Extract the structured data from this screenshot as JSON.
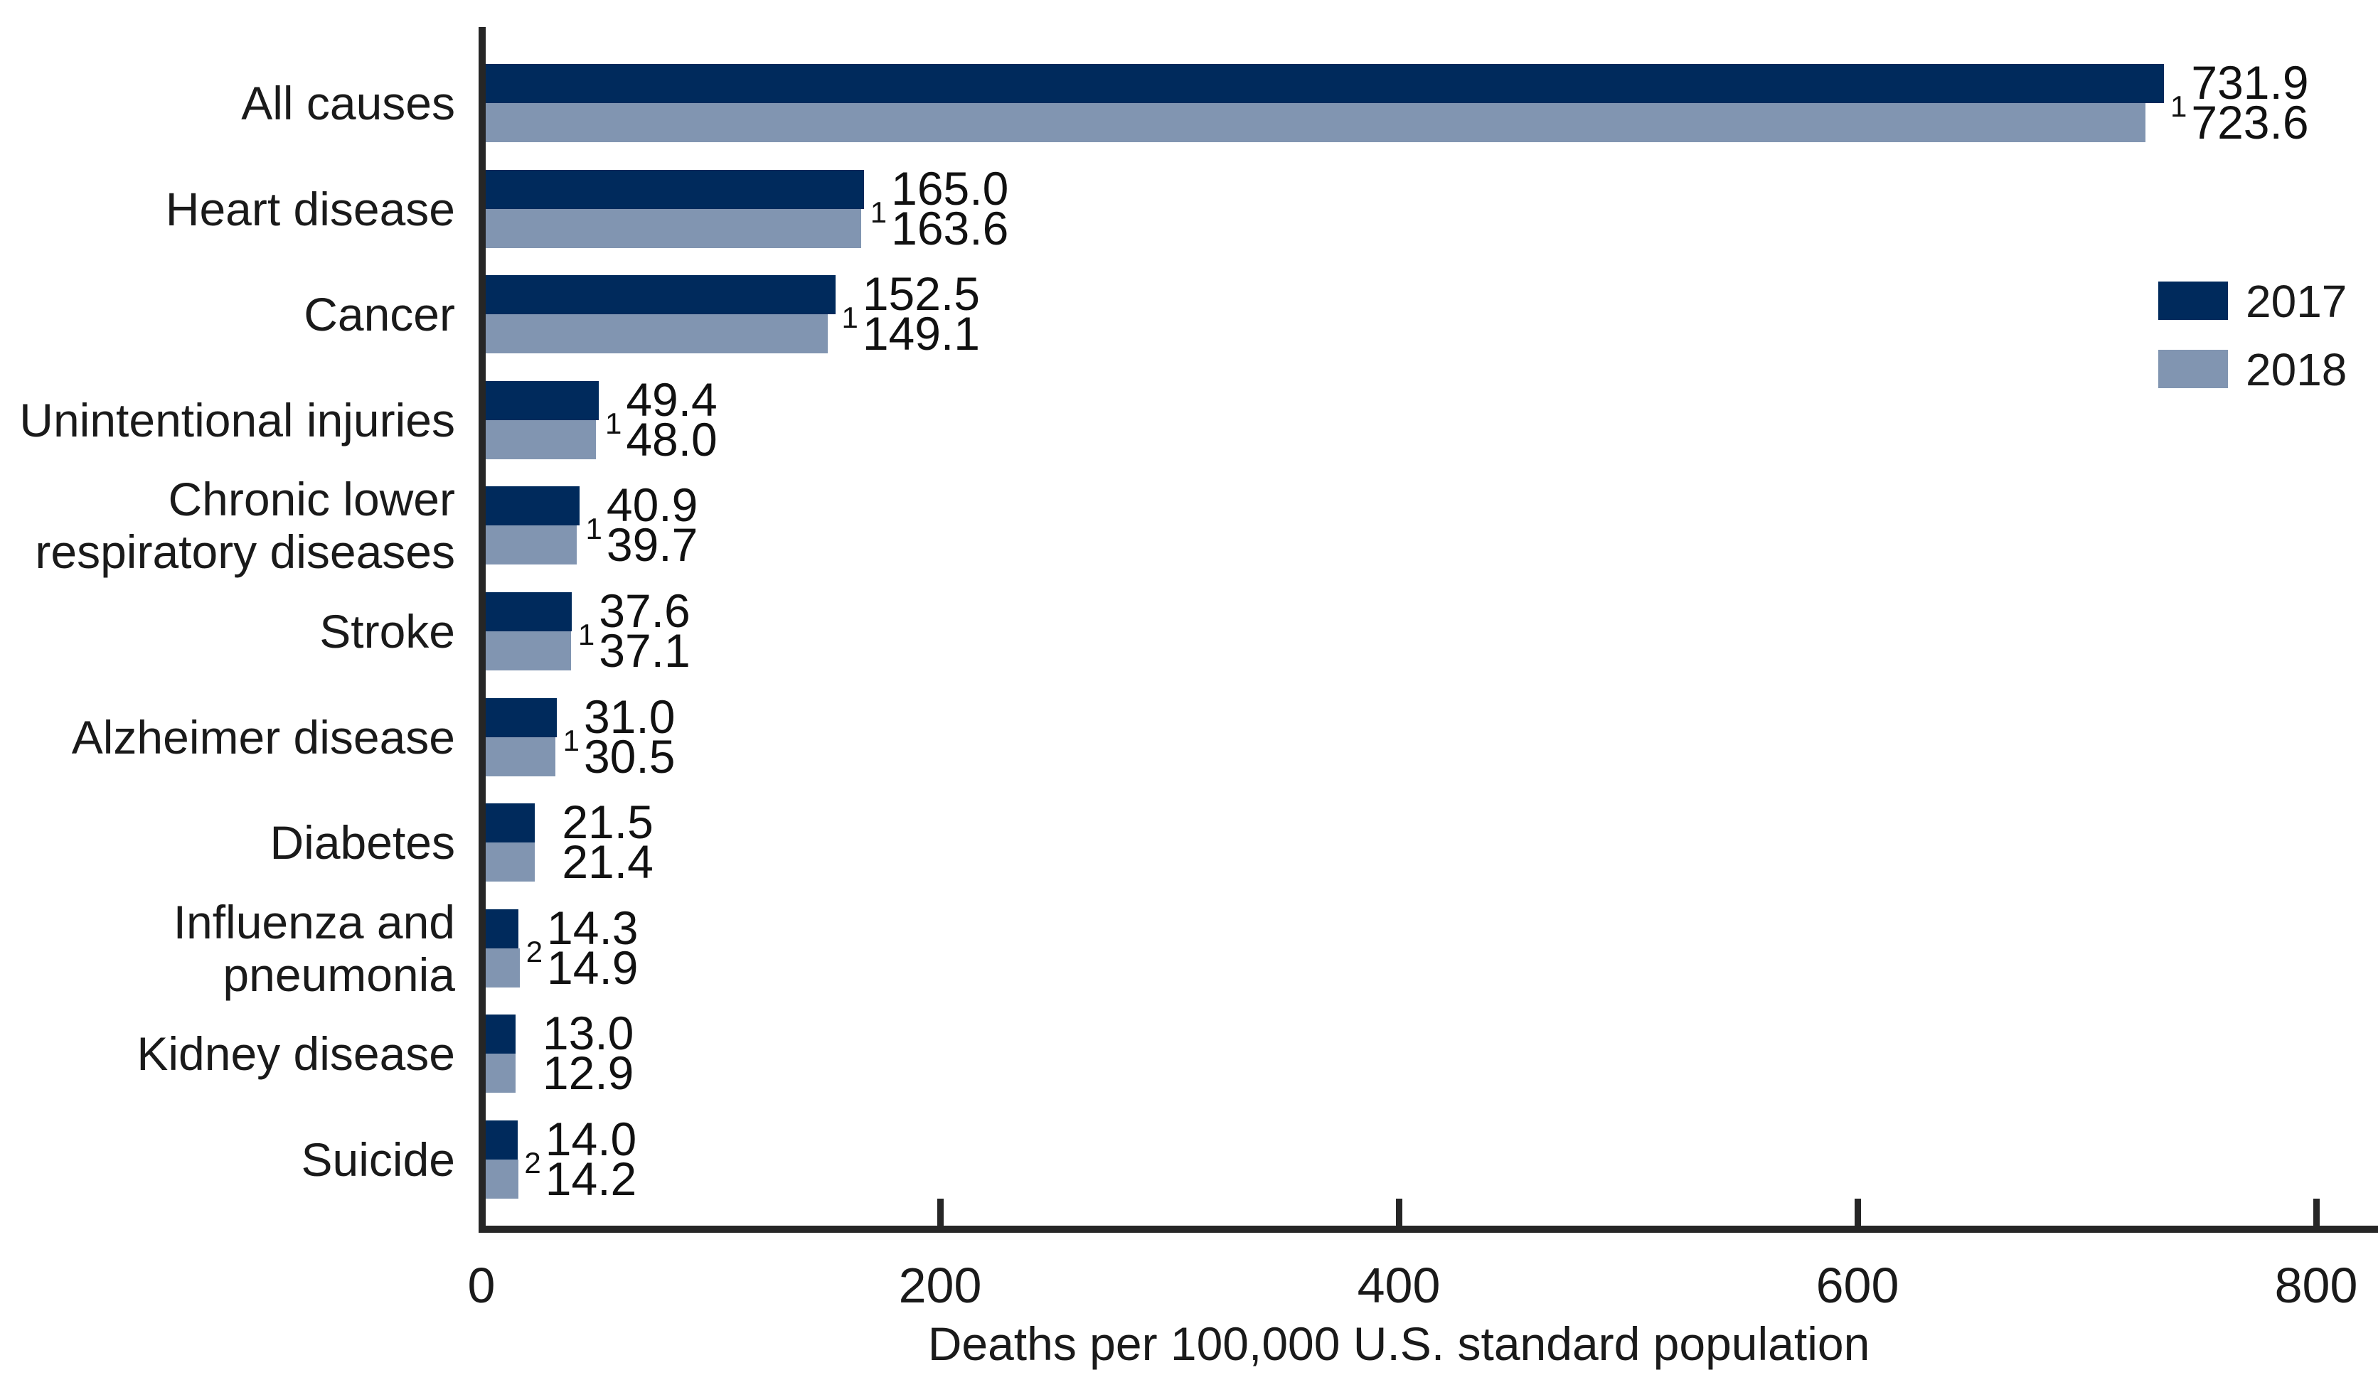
{
  "chart_data": {
    "type": "bar",
    "orientation": "horizontal",
    "xlabel": "Deaths per 100,000 U.S. standard population",
    "xlim": [
      0,
      800
    ],
    "x_ticks": [
      0,
      200,
      400,
      600,
      800
    ],
    "grid": false,
    "legend_position": "upper right",
    "categories": [
      "All causes",
      "Heart disease",
      "Cancer",
      "Unintentional injuries",
      "Chronic lower\nrespiratory diseases",
      "Stroke",
      "Alzheimer disease",
      "Diabetes",
      "Influenza and\npneumonia",
      "Kidney disease",
      "Suicide"
    ],
    "series": [
      {
        "name": "2017",
        "color": "#002A5C",
        "values": [
          731.9,
          165.0,
          152.5,
          49.4,
          40.9,
          37.6,
          31.0,
          21.5,
          14.3,
          13.0,
          14.0
        ],
        "value_labels": [
          "731.9",
          "165.0",
          "152.5",
          "49.4",
          "40.9",
          "37.6",
          "31.0",
          "21.5",
          "14.3",
          "13.0",
          "14.0"
        ],
        "superscripts": [
          "",
          "",
          "",
          "",
          "",
          "",
          "",
          "",
          "",
          "",
          ""
        ]
      },
      {
        "name": "2018",
        "color": "#8195B1",
        "values": [
          723.6,
          163.6,
          149.1,
          48.0,
          39.7,
          37.1,
          30.5,
          21.4,
          14.9,
          12.9,
          14.2
        ],
        "value_labels": [
          "723.6",
          "163.6",
          "149.1",
          "48.0",
          "39.7",
          "37.1",
          "30.5",
          "21.4",
          "14.9",
          "12.9",
          "14.2"
        ],
        "superscripts": [
          "1",
          "1",
          "1",
          "1",
          "1",
          "1",
          "1",
          "",
          "2",
          "",
          "2"
        ]
      }
    ]
  }
}
